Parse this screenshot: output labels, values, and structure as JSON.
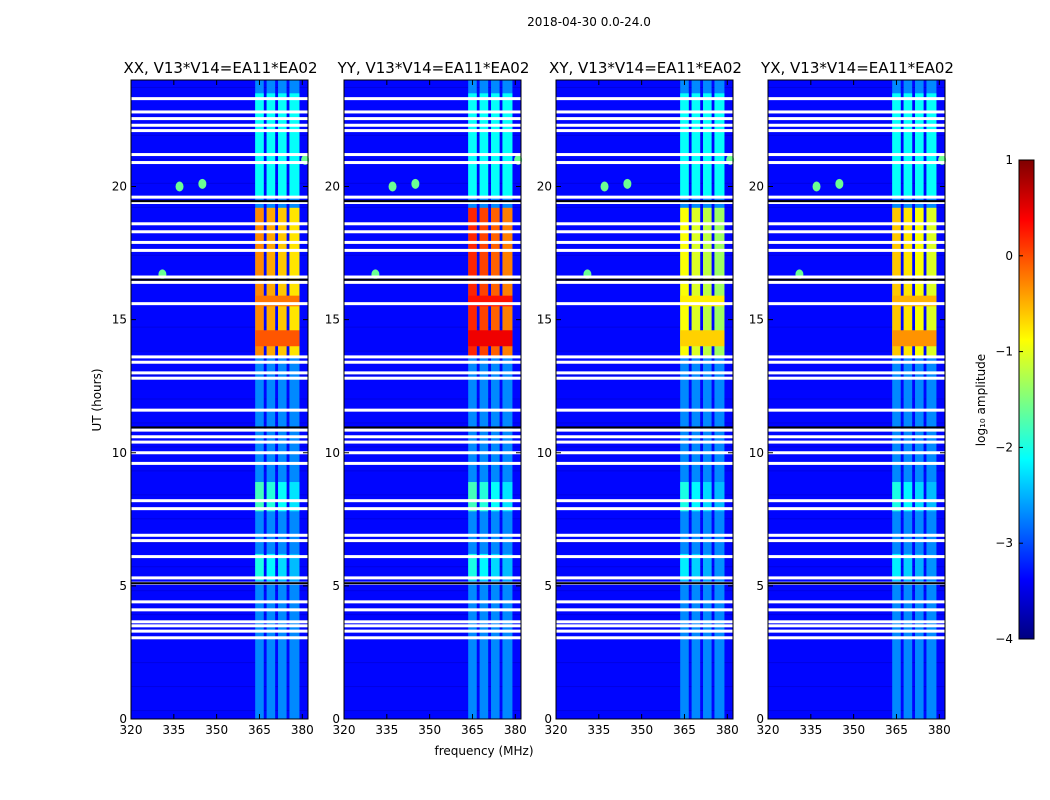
{
  "chart_data": {
    "type": "heatmap",
    "title": "2018-04-30 0.0-24.0",
    "ylabel": "UT (hours)",
    "xlabel": "frequency (MHz)",
    "xlim": [
      320,
      382
    ],
    "ylim": [
      0,
      24
    ],
    "xticks": [
      "320",
      "335",
      "350",
      "365",
      "380"
    ],
    "xtick_values": [
      320,
      335,
      350,
      365,
      380
    ],
    "yticks": [
      "0",
      "5",
      "10",
      "15",
      "20"
    ],
    "ytick_values": [
      0,
      5,
      10,
      15,
      20
    ],
    "panels": [
      {
        "title": "XX, V13*V14=EA11*EA02",
        "polarization": "XX",
        "peak_log_amp": -0.3
      },
      {
        "title": "YY, V13*V14=EA11*EA02",
        "polarization": "YY",
        "peak_log_amp": 0.2
      },
      {
        "title": "XY, V13*V14=EA11*EA02",
        "polarization": "XY",
        "peak_log_amp": -0.9
      },
      {
        "title": "YX, V13*V14=EA11*EA02",
        "polarization": "YX",
        "peak_log_amp": -0.6
      }
    ],
    "bright_band_mhz": [
      363,
      380
    ],
    "rfi_bursts": [
      {
        "time_start": 13.6,
        "time_end": 19.2,
        "level": -1.0
      },
      {
        "time_start": 7.8,
        "time_end": 8.9,
        "level": -1.8
      },
      {
        "time_start": 5.2,
        "time_end": 6.2,
        "level": -2.0
      }
    ],
    "flagged_hours": [
      3.05,
      3.3,
      3.5,
      3.65,
      4.1,
      4.4,
      5.1,
      5.3,
      6.1,
      6.7,
      6.9,
      7.9,
      8.2,
      9.6,
      10.0,
      10.4,
      10.6,
      10.85,
      11.6,
      12.8,
      13.0,
      13.4,
      13.6,
      15.6,
      16.4,
      16.6,
      17.6,
      17.9,
      18.3,
      18.6,
      19.4,
      19.6,
      20.9,
      21.2,
      22.1,
      22.3,
      22.55,
      22.8,
      23.3
    ]
  },
  "colorbar": {
    "label": "log₁₀ amplitude",
    "min": -4,
    "max": 1,
    "ticks": [
      "−4",
      "−3",
      "−2",
      "−1",
      "0",
      "1"
    ],
    "tick_values": [
      -4,
      -3,
      -2,
      -1,
      0,
      1
    ],
    "colors": [
      "#00007f",
      "#0000ff",
      "#007fff",
      "#00ffff",
      "#7fff7f",
      "#ffff00",
      "#ff7f00",
      "#ff0000",
      "#7f0000"
    ]
  }
}
